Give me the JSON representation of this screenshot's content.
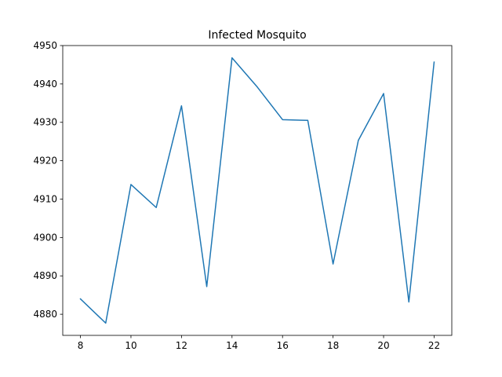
{
  "chart_data": {
    "type": "line",
    "title": "Infected Mosquito",
    "xlabel": "",
    "ylabel": "",
    "x": [
      8,
      9,
      10,
      11,
      12,
      13,
      14,
      15,
      16,
      17,
      18,
      19,
      20,
      21,
      22
    ],
    "series": [
      {
        "values": [
          4884.0,
          4877.7,
          4913.8,
          4907.8,
          4934.3,
          4887.2,
          4946.8,
          4939.2,
          4930.7,
          4930.5,
          4893.1,
          4925.3,
          4937.5,
          4883.2,
          4945.7
        ],
        "color": "#1f77b4"
      }
    ],
    "xlim": [
      7.3,
      22.7
    ],
    "ylim": [
      4874.5,
      4950
    ],
    "xticks": [
      "8",
      "10",
      "12",
      "14",
      "16",
      "18",
      "20",
      "22"
    ],
    "yticks": [
      "4880",
      "4890",
      "4900",
      "4910",
      "4920",
      "4930",
      "4940",
      "4950"
    ],
    "grid": false,
    "legend": "none"
  }
}
